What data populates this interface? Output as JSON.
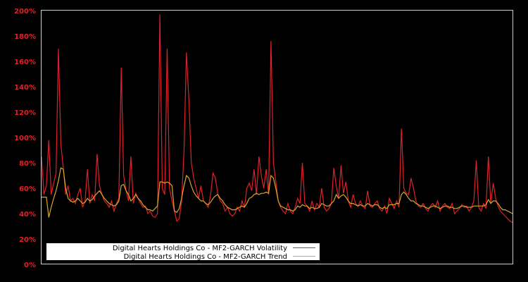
{
  "chart_data": {
    "type": "line",
    "title": "",
    "xlabel": "",
    "ylabel": "",
    "ylim": [
      0,
      200
    ],
    "y_ticks": [
      "0%",
      "20%",
      "40%",
      "60%",
      "80%",
      "100%",
      "120%",
      "140%",
      "160%",
      "180%",
      "200%"
    ],
    "y_tick_values": [
      0,
      20,
      40,
      60,
      80,
      100,
      120,
      140,
      160,
      180,
      200
    ],
    "grid": false,
    "legend_position": "lower-left",
    "background": "#000000",
    "axis_color": "#cccccc",
    "tick_color": "#e0202a",
    "x_index_note": "x is sample index across the time span (no date labels shown)",
    "series": [
      {
        "name": "Digital Hearts Holdings Co - MF2-GARCH Volatility",
        "color": "#e0202a",
        "values": [
          85,
          55,
          62,
          98,
          55,
          64,
          72,
          170,
          95,
          76,
          55,
          62,
          50,
          52,
          48,
          55,
          60,
          45,
          50,
          75,
          48,
          55,
          50,
          87,
          62,
          55,
          50,
          48,
          45,
          50,
          42,
          48,
          52,
          155,
          70,
          58,
          50,
          85,
          48,
          56,
          52,
          48,
          45,
          46,
          40,
          42,
          38,
          37,
          40,
          197,
          60,
          55,
          170,
          60,
          50,
          42,
          34,
          36,
          50,
          90,
          167,
          130,
          80,
          68,
          60,
          52,
          62,
          50,
          48,
          45,
          55,
          72,
          68,
          55,
          50,
          48,
          42,
          45,
          40,
          38,
          40,
          45,
          42,
          50,
          45,
          60,
          64,
          58,
          75,
          55,
          85,
          70,
          60,
          75,
          55,
          176,
          80,
          65,
          50,
          45,
          42,
          40,
          48,
          42,
          40,
          45,
          52,
          48,
          80,
          48,
          46,
          42,
          50,
          43,
          48,
          45,
          60,
          45,
          42,
          44,
          48,
          76,
          62,
          52,
          78,
          56,
          65,
          50,
          45,
          55,
          48,
          46,
          50,
          46,
          44,
          58,
          46,
          45,
          48,
          50,
          44,
          42,
          46,
          40,
          52,
          48,
          44,
          50,
          45,
          107,
          60,
          56,
          55,
          68,
          60,
          50,
          46,
          45,
          48,
          44,
          42,
          46,
          48,
          45,
          50,
          42,
          46,
          48,
          45,
          44,
          48,
          40,
          42,
          44,
          47,
          45,
          46,
          42,
          45,
          50,
          82,
          45,
          42,
          48,
          44,
          85,
          48,
          64,
          52,
          46,
          42,
          40,
          38,
          36,
          34,
          33
        ]
      },
      {
        "name": "Digital Hearts Holdings Co - MF2-GARCH Trend",
        "color": "#d4a82a",
        "values": [
          53,
          53,
          53,
          37,
          45,
          52,
          58,
          66,
          76,
          75,
          60,
          52,
          50,
          49,
          50,
          52,
          50,
          48,
          49,
          52,
          50,
          51,
          54,
          56,
          58,
          55,
          52,
          50,
          48,
          47,
          46,
          47,
          50,
          62,
          63,
          58,
          55,
          50,
          52,
          55,
          52,
          50,
          47,
          45,
          43,
          43,
          42,
          44,
          46,
          65,
          65,
          64,
          65,
          64,
          62,
          42,
          41,
          44,
          52,
          62,
          70,
          68,
          62,
          57,
          54,
          52,
          50,
          50,
          48,
          47,
          49,
          52,
          54,
          55,
          52,
          50,
          47,
          45,
          44,
          43,
          43,
          44,
          45,
          46,
          45,
          48,
          52,
          53,
          55,
          56,
          55,
          56,
          56,
          57,
          56,
          70,
          68,
          60,
          50,
          46,
          45,
          44,
          43,
          43,
          42,
          43,
          46,
          45,
          47,
          46,
          46,
          44,
          45,
          44,
          44,
          45,
          48,
          47,
          46,
          46,
          48,
          50,
          55,
          52,
          54,
          55,
          53,
          50,
          48,
          48,
          47,
          46,
          47,
          46,
          46,
          48,
          47,
          46,
          47,
          47,
          45,
          44,
          45,
          44,
          47,
          47,
          47,
          48,
          48,
          55,
          57,
          55,
          52,
          50,
          50,
          48,
          47,
          46,
          46,
          45,
          44,
          45,
          46,
          46,
          45,
          44,
          45,
          46,
          46,
          45,
          45,
          44,
          44,
          45,
          46,
          46,
          45,
          45,
          45,
          46,
          46,
          46,
          46,
          46,
          47,
          51,
          48,
          50,
          50,
          48,
          45,
          43,
          43,
          42,
          41,
          40
        ]
      }
    ]
  },
  "legend": {
    "items": [
      {
        "label": "Digital Hearts Holdings Co - MF2-GARCH Volatility",
        "color": "#e0202a"
      },
      {
        "label": "Digital Hearts Holdings Co - MF2-GARCH Trend",
        "color": "#d4a82a"
      }
    ]
  }
}
